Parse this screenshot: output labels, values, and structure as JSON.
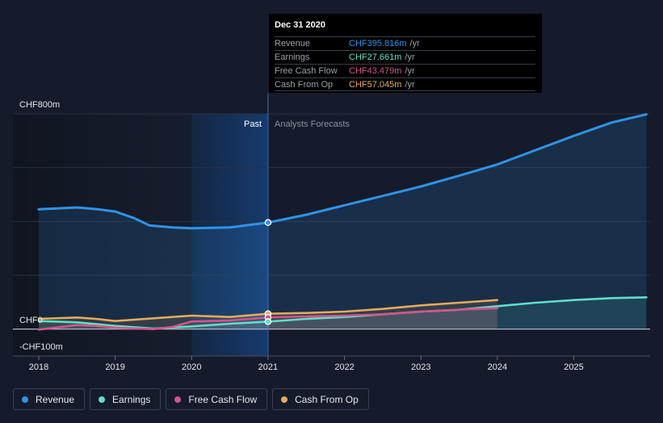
{
  "chart_data": {
    "type": "line",
    "y_axis": {
      "top_label": "CHF800m",
      "zero_label": "CHF0",
      "bottom_label": "-CHF100m",
      "ylim": [
        -100,
        800
      ]
    },
    "x_ticks": [
      "2018",
      "2019",
      "2020",
      "2021",
      "2022",
      "2023",
      "2024",
      "2025"
    ],
    "past_label": "Past",
    "forecast_label": "Analysts Forecasts",
    "divider_x": 2021.0,
    "highlight_start_x": 2020.0,
    "series": [
      {
        "name": "Revenue",
        "color": "#2f93e8",
        "points": [
          [
            2018.0,
            445
          ],
          [
            2018.5,
            452
          ],
          [
            2018.75,
            446
          ],
          [
            2019.0,
            437
          ],
          [
            2019.25,
            412
          ],
          [
            2019.45,
            385
          ],
          [
            2019.75,
            378
          ],
          [
            2020.0,
            375
          ],
          [
            2020.5,
            378
          ],
          [
            2021.0,
            396
          ],
          [
            2021.5,
            425
          ],
          [
            2022.0,
            460
          ],
          [
            2022.5,
            495
          ],
          [
            2023.0,
            530
          ],
          [
            2023.5,
            570
          ],
          [
            2024.0,
            612
          ],
          [
            2024.5,
            665
          ],
          [
            2025.0,
            718
          ],
          [
            2025.5,
            768
          ],
          [
            2025.95,
            798
          ]
        ]
      },
      {
        "name": "Earnings",
        "color": "#5ce0c8",
        "points": [
          [
            2018.0,
            30
          ],
          [
            2018.5,
            25
          ],
          [
            2019.0,
            12
          ],
          [
            2019.5,
            2
          ],
          [
            2020.0,
            10
          ],
          [
            2020.5,
            20
          ],
          [
            2021.0,
            27.7
          ],
          [
            2021.5,
            38
          ],
          [
            2022.0,
            45
          ],
          [
            2022.5,
            55
          ],
          [
            2023.0,
            65
          ],
          [
            2023.5,
            72
          ],
          [
            2024.0,
            85
          ],
          [
            2024.5,
            98
          ],
          [
            2025.0,
            108
          ],
          [
            2025.5,
            115
          ],
          [
            2025.95,
            118
          ]
        ]
      },
      {
        "name": "Free Cash Flow",
        "color": "#d6538c",
        "points": [
          [
            2018.0,
            -2
          ],
          [
            2018.5,
            15
          ],
          [
            2018.75,
            12
          ],
          [
            2019.0,
            5
          ],
          [
            2019.5,
            0
          ],
          [
            2019.75,
            8
          ],
          [
            2020.0,
            28
          ],
          [
            2020.5,
            32
          ],
          [
            2021.0,
            43.5
          ],
          [
            2021.5,
            47
          ],
          [
            2022.0,
            50
          ],
          [
            2022.5,
            55
          ],
          [
            2023.0,
            65
          ],
          [
            2023.5,
            72
          ],
          [
            2024.0,
            78
          ]
        ]
      },
      {
        "name": "Cash From Op",
        "color": "#e5aa5a",
        "points": [
          [
            2018.0,
            38
          ],
          [
            2018.5,
            43
          ],
          [
            2018.75,
            38
          ],
          [
            2019.0,
            30
          ],
          [
            2019.5,
            40
          ],
          [
            2020.0,
            50
          ],
          [
            2020.5,
            45
          ],
          [
            2021.0,
            57
          ],
          [
            2021.5,
            60
          ],
          [
            2022.0,
            65
          ],
          [
            2022.5,
            75
          ],
          [
            2023.0,
            88
          ],
          [
            2023.5,
            98
          ],
          [
            2024.0,
            108
          ]
        ]
      }
    ],
    "markers": [
      {
        "series": "Revenue",
        "x": 2021.0,
        "y": 396
      },
      {
        "series": "Cash From Op",
        "x": 2021.0,
        "y": 57
      },
      {
        "series": "Free Cash Flow",
        "x": 2021.0,
        "y": 43.5
      },
      {
        "series": "Earnings",
        "x": 2021.0,
        "y": 27.7
      }
    ]
  },
  "tooltip": {
    "date": "Dec 31 2020",
    "rows": [
      {
        "name": "Revenue",
        "value": "CHF395.816m",
        "unit": "/yr",
        "color": "#2f93e8"
      },
      {
        "name": "Earnings",
        "value": "CHF27.661m",
        "unit": "/yr",
        "color": "#5ce0c8"
      },
      {
        "name": "Free Cash Flow",
        "value": "CHF43.479m",
        "unit": "/yr",
        "color": "#d6538c"
      },
      {
        "name": "Cash From Op",
        "value": "CHF57.045m",
        "unit": "/yr",
        "color": "#e5aa5a"
      }
    ]
  },
  "legend": [
    {
      "label": "Revenue",
      "color": "#2f93e8"
    },
    {
      "label": "Earnings",
      "color": "#5ce0c8"
    },
    {
      "label": "Free Cash Flow",
      "color": "#d6538c"
    },
    {
      "label": "Cash From Op",
      "color": "#e5aa5a"
    }
  ]
}
